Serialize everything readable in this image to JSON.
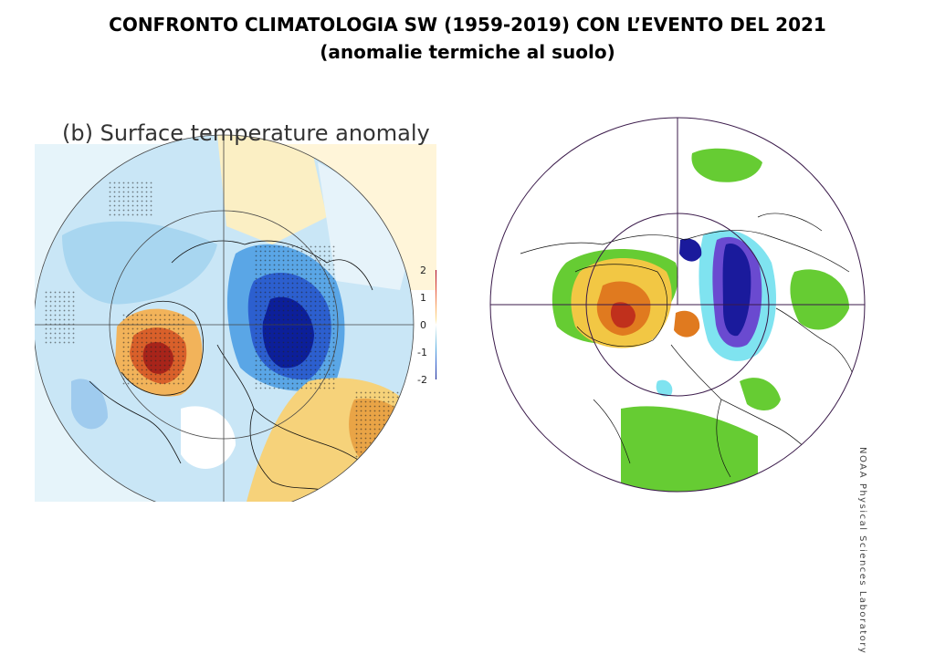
{
  "slide": {
    "title_line1": "CONFRONTO CLIMATOLOGIA SW (1959-2019) CON L’EVENTO DEL 2021",
    "title_line2": "(anomalie termiche al suolo)"
  },
  "left_map": {
    "label": "(b) Surface temperature anomaly",
    "colorbar": {
      "ticks": [
        "2",
        "1",
        "0",
        "-1",
        "-2"
      ],
      "colors": [
        "#a50026",
        "#e34a33",
        "#fdae61",
        "#fee090",
        "#ffffff",
        "#abd9e9",
        "#4fa8e0",
        "#2c5fcf",
        "#0a1a8f"
      ]
    },
    "projection": "polar stereographic, Northern Hemisphere"
  },
  "right_map": {
    "credit": "NOAA Physical Sciences Laboratory",
    "projection": "polar stereographic, Northern Hemisphere",
    "colors": {
      "green": "#66cc33",
      "yellow": "#f2c744",
      "orange": "#e07a1f",
      "red": "#c0301c",
      "cyan": "#7fe3f0",
      "purple": "#6a4ad0",
      "dark_blue": "#1a1a9c"
    }
  }
}
